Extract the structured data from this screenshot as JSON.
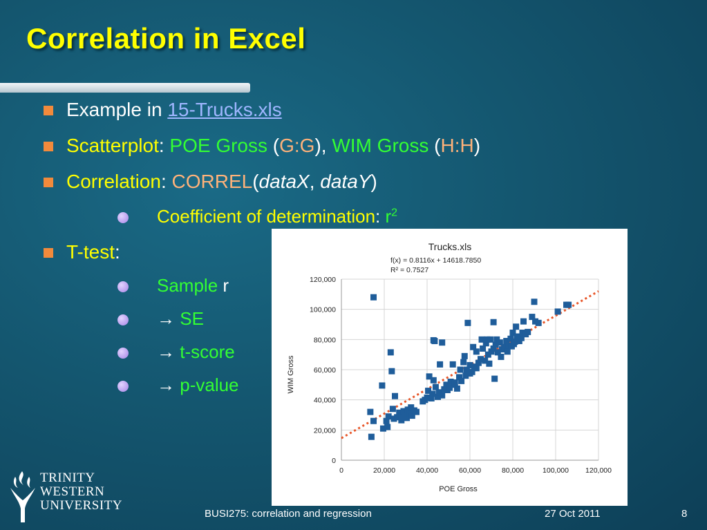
{
  "slide": {
    "title": "Correlation in Excel",
    "bullets": {
      "b1": {
        "text": "Example in ",
        "link": "15-Trucks.xls"
      },
      "b2": {
        "a": "Scatterplot",
        "b": ": ",
        "c": "POE Gross",
        "d": " (",
        "e": "G:G",
        "f": "), ",
        "g": "WIM Gross",
        "h": " (",
        "i": "H:H",
        "j": ")"
      },
      "b3": {
        "a": "Correlation",
        "b": ": ",
        "c": "CORREL",
        "d": "(",
        "e": "dataX",
        "f": ", ",
        "g": "dataY",
        "h": ")"
      },
      "b4": {
        "a": "Coefficient of determination",
        "b": ": ",
        "c": "r",
        "d": "2"
      },
      "b5": {
        "a": "T-test",
        "b": ":"
      },
      "b6": {
        "a": "Sample",
        "b": " r"
      },
      "b7": {
        "a": "→ ",
        "b": "SE"
      },
      "b8": {
        "a": "→ ",
        "b": "t-score"
      },
      "b9": {
        "a": "→ ",
        "b": "p-value"
      }
    }
  },
  "logo": {
    "line1": "TRINITY",
    "line2": "WESTERN",
    "line3": "UNIVERSITY"
  },
  "footer": {
    "course": "BUSI275: correlation and regression",
    "date": "27 Oct 2011",
    "page": "8"
  },
  "colors": {
    "title": "#ffff00",
    "accent_green": "#33ff33",
    "accent_orange": "#ffb27a",
    "marker": "#1f5d9a",
    "trendline": "#e8572a"
  },
  "chart_data": {
    "type": "scatter",
    "title": "Trucks.xls",
    "annotation_line1": "f(x) = 0.8116x + 14618.7850",
    "annotation_line2": "R² = 0.7527",
    "xlabel": "POE Gross",
    "ylabel": "WIM Gross",
    "xlim": [
      0,
      120000
    ],
    "ylim": [
      0,
      120000
    ],
    "x_ticks": [
      "0",
      "20,000",
      "40,000",
      "60,000",
      "80,000",
      "100,000",
      "120,000"
    ],
    "y_ticks": [
      "0",
      "20,000",
      "40,000",
      "60,000",
      "80,000",
      "100,000",
      "120,000"
    ],
    "grid": true,
    "trendline": {
      "slope": 0.8116,
      "intercept": 14618.785,
      "style": "dotted"
    },
    "series": [
      {
        "points": [
          [
            13500,
            32000
          ],
          [
            14000,
            15500
          ],
          [
            15000,
            26000
          ],
          [
            15000,
            108000
          ],
          [
            19000,
            49500
          ],
          [
            19500,
            21000
          ],
          [
            21000,
            26000
          ],
          [
            21500,
            22000
          ],
          [
            22000,
            29000
          ],
          [
            23000,
            71500
          ],
          [
            23500,
            59000
          ],
          [
            24000,
            34000
          ],
          [
            24500,
            27500
          ],
          [
            25000,
            42500
          ],
          [
            26000,
            28500
          ],
          [
            27000,
            31500
          ],
          [
            27500,
            29000
          ],
          [
            28000,
            26500
          ],
          [
            29000,
            32500
          ],
          [
            30000,
            30500
          ],
          [
            30500,
            28000
          ],
          [
            31000,
            33500
          ],
          [
            32000,
            31000
          ],
          [
            32500,
            35000
          ],
          [
            33000,
            29500
          ],
          [
            34000,
            33000
          ],
          [
            35000,
            32000
          ],
          [
            38000,
            39000
          ],
          [
            39000,
            40000
          ],
          [
            40000,
            41500
          ],
          [
            40500,
            46000
          ],
          [
            41000,
            55500
          ],
          [
            42000,
            41000
          ],
          [
            42500,
            44000
          ],
          [
            43000,
            79500
          ],
          [
            43000,
            53000
          ],
          [
            43500,
            79000
          ],
          [
            44000,
            48500
          ],
          [
            45000,
            42000
          ],
          [
            45500,
            45000
          ],
          [
            46000,
            63500
          ],
          [
            47000,
            78000
          ],
          [
            47000,
            43000
          ],
          [
            48000,
            47000
          ],
          [
            49000,
            50000
          ],
          [
            49500,
            46500
          ],
          [
            50500,
            48000
          ],
          [
            51000,
            52000
          ],
          [
            52000,
            63500
          ],
          [
            52500,
            50000
          ],
          [
            53000,
            51500
          ],
          [
            54000,
            47500
          ],
          [
            55000,
            55000
          ],
          [
            55500,
            60000
          ],
          [
            56000,
            52500
          ],
          [
            57000,
            65000
          ],
          [
            57500,
            69000
          ],
          [
            58000,
            56000
          ],
          [
            58500,
            60000
          ],
          [
            59000,
            91000
          ],
          [
            60000,
            63000
          ],
          [
            60000,
            57500
          ],
          [
            61000,
            58500
          ],
          [
            61500,
            75000
          ],
          [
            62000,
            62000
          ],
          [
            63000,
            61000
          ],
          [
            63000,
            72000
          ],
          [
            64000,
            64500
          ],
          [
            65000,
            67000
          ],
          [
            65500,
            80000
          ],
          [
            66000,
            74000
          ],
          [
            67000,
            66000
          ],
          [
            67500,
            77500
          ],
          [
            68000,
            80000
          ],
          [
            68500,
            70000
          ],
          [
            69000,
            64000
          ],
          [
            69500,
            80000
          ],
          [
            70000,
            72000
          ],
          [
            71000,
            74000
          ],
          [
            71000,
            91500
          ],
          [
            71500,
            54000
          ],
          [
            72000,
            76500
          ],
          [
            72500,
            80000
          ],
          [
            73000,
            71500
          ],
          [
            74000,
            78000
          ],
          [
            74500,
            68500
          ],
          [
            75000,
            73500
          ],
          [
            76000,
            75000
          ],
          [
            77000,
            79000
          ],
          [
            77500,
            72000
          ],
          [
            78000,
            76000
          ],
          [
            79000,
            80500
          ],
          [
            79500,
            75500
          ],
          [
            80000,
            84500
          ],
          [
            80500,
            77000
          ],
          [
            81000,
            78500
          ],
          [
            81500,
            88500
          ],
          [
            82000,
            82000
          ],
          [
            83000,
            79000
          ],
          [
            84000,
            81000
          ],
          [
            84500,
            84500
          ],
          [
            85000,
            92000
          ],
          [
            86000,
            83500
          ],
          [
            87000,
            85000
          ],
          [
            89000,
            95000
          ],
          [
            90000,
            105000
          ],
          [
            90500,
            92000
          ],
          [
            92000,
            91000
          ],
          [
            101000,
            98500
          ],
          [
            105000,
            103000
          ],
          [
            106000,
            103000
          ]
        ]
      }
    ]
  }
}
